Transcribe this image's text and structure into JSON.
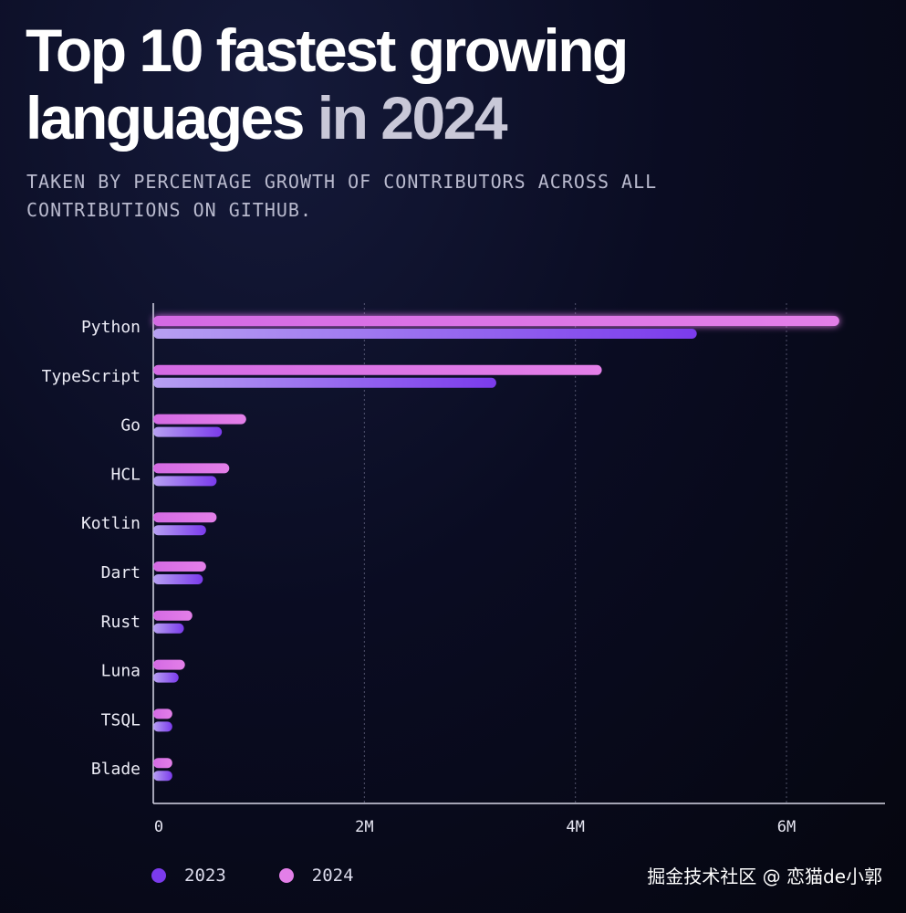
{
  "header": {
    "title_main": "Top 10 fastest growing languages",
    "title_accent": "in 2024",
    "subtitle_line1": "TAKEN BY PERCENTAGE GROWTH OF CONTRIBUTORS ACROSS ALL",
    "subtitle_line2": "CONTRIBUTIONS ON GITHUB."
  },
  "colors": {
    "series_2023": "#7b3bec",
    "series_2024": "#e37fe8"
  },
  "chart_data": {
    "type": "bar",
    "orientation": "horizontal",
    "categories": [
      "Python",
      "TypeScript",
      "Go",
      "HCL",
      "Kotlin",
      "Dart",
      "Rust",
      "Luna",
      "TSQL",
      "Blade"
    ],
    "series": [
      {
        "name": "2024",
        "values": [
          6500000,
          4250000,
          880000,
          720000,
          600000,
          500000,
          370000,
          300000,
          180000,
          180000
        ]
      },
      {
        "name": "2023",
        "values": [
          5150000,
          3250000,
          650000,
          600000,
          500000,
          470000,
          290000,
          240000,
          180000,
          180000
        ]
      }
    ],
    "xlim": [
      0,
      6900000
    ],
    "x_ticks": [
      0,
      2000000,
      4000000,
      6000000
    ],
    "x_tick_labels": [
      "0",
      "2M",
      "4M",
      "6M"
    ],
    "grid": "vertical-dotted",
    "legend": [
      {
        "label": "2023"
      },
      {
        "label": "2024"
      }
    ]
  },
  "watermark": "掘金技术社区 @ 恋猫de小郭"
}
